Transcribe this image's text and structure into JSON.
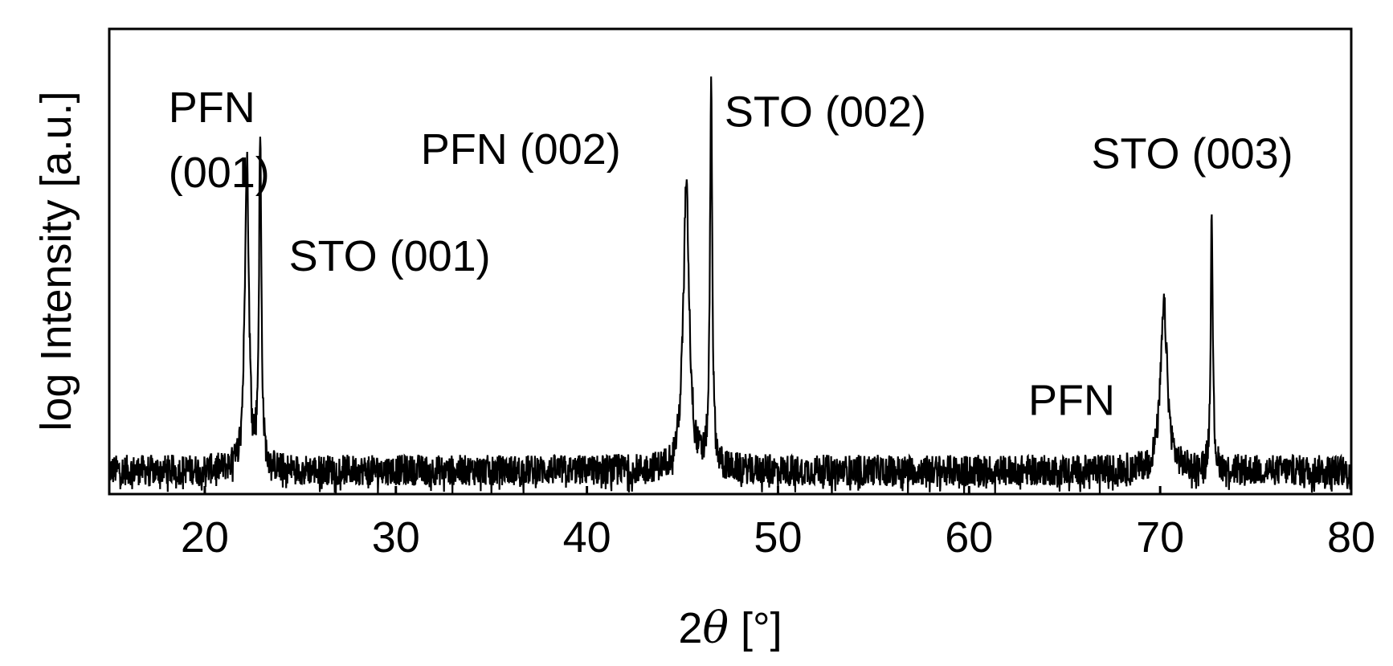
{
  "chart_data": {
    "type": "line",
    "title": "",
    "xlabel": "2θ [°]",
    "xlabel_prefix": "2",
    "xlabel_symbol": "θ",
    "xlabel_unit": " [°]",
    "ylabel": "log Intensity [a.u.]",
    "xlim": [
      15,
      80
    ],
    "ylim": [
      0,
      1
    ],
    "y_scale": "log",
    "y_tick_labels": false,
    "grid": false,
    "x_ticks": [
      20,
      30,
      40,
      50,
      60,
      70,
      80
    ],
    "x_tick_labels": [
      "20",
      "30",
      "40",
      "50",
      "60",
      "70",
      "80"
    ],
    "peaks": [
      {
        "x": 22.2,
        "height": 0.71,
        "width": 0.12
      },
      {
        "x": 22.9,
        "height": 0.74,
        "width": 0.07
      },
      {
        "x": 45.2,
        "height": 0.64,
        "width": 0.18
      },
      {
        "x": 46.5,
        "height": 0.85,
        "width": 0.07
      },
      {
        "x": 70.2,
        "height": 0.37,
        "width": 0.2
      },
      {
        "x": 72.7,
        "height": 0.61,
        "width": 0.06
      }
    ],
    "noise_floor": 0.06,
    "annotations": [
      {
        "text": "PFN",
        "x": 18.1,
        "y": 0.8
      },
      {
        "text": "(001)",
        "x": 18.1,
        "y": 0.66
      },
      {
        "text": "STO (001)",
        "x": 24.4,
        "y": 0.48
      },
      {
        "text": "PFN (002)",
        "x": 31.3,
        "y": 0.71
      },
      {
        "text": "STO (002)",
        "x": 47.2,
        "y": 0.79
      },
      {
        "text": "STO (003)",
        "x": 66.4,
        "y": 0.7
      },
      {
        "text": "PFN",
        "x": 63.1,
        "y": 0.17
      }
    ],
    "series": [
      {
        "color": "#000000"
      }
    ]
  }
}
